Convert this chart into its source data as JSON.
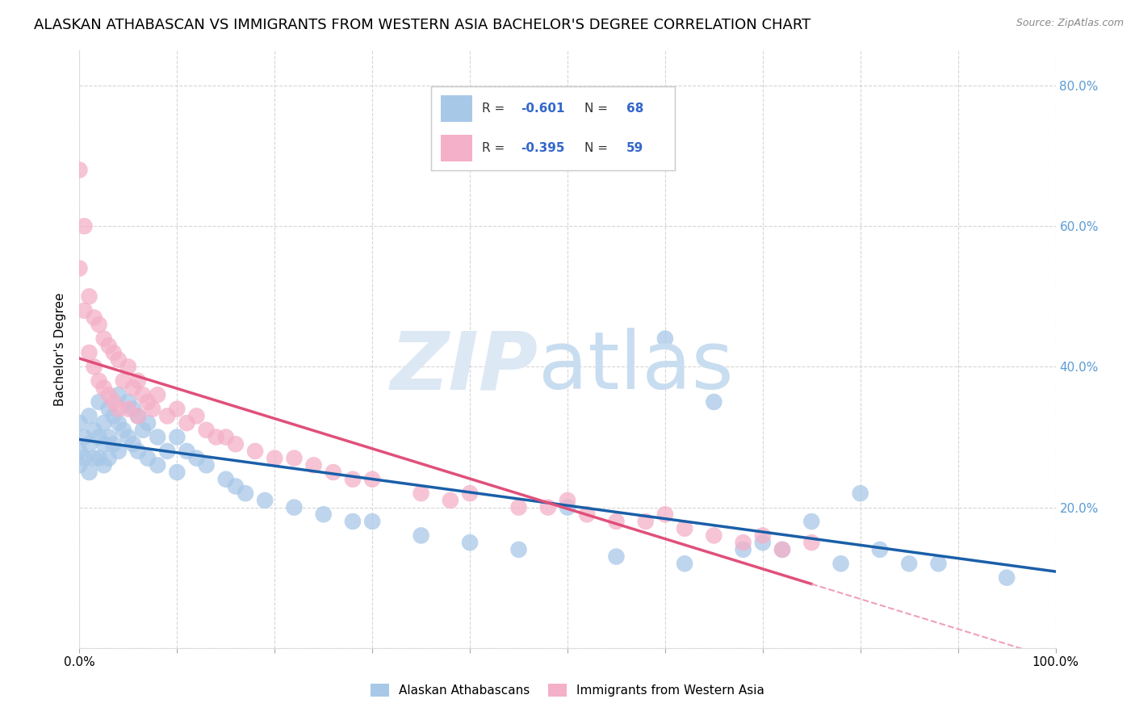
{
  "title": "ALASKAN ATHABASCAN VS IMMIGRANTS FROM WESTERN ASIA BACHELOR'S DEGREE CORRELATION CHART",
  "source": "Source: ZipAtlas.com",
  "ylabel": "Bachelor's Degree",
  "blue_R": -0.601,
  "blue_N": 68,
  "pink_R": -0.395,
  "pink_N": 59,
  "blue_color": "#a8c8e8",
  "pink_color": "#f4b0c8",
  "blue_line_color": "#1a5fa8",
  "pink_line_color": "#e0507a",
  "pink_dash_color": "#f0a0b8",
  "watermark_zip_color": "#dce8f4",
  "watermark_atlas_color": "#c8ddf0",
  "legend_label_blue": "Alaskan Athabascans",
  "legend_label_pink": "Immigrants from Western Asia",
  "blue_scatter_x": [
    0.0,
    0.0,
    0.0,
    0.005,
    0.005,
    0.01,
    0.01,
    0.01,
    0.015,
    0.015,
    0.02,
    0.02,
    0.02,
    0.025,
    0.025,
    0.025,
    0.03,
    0.03,
    0.03,
    0.035,
    0.035,
    0.04,
    0.04,
    0.04,
    0.045,
    0.05,
    0.05,
    0.055,
    0.055,
    0.06,
    0.06,
    0.065,
    0.07,
    0.07,
    0.08,
    0.08,
    0.09,
    0.1,
    0.1,
    0.11,
    0.12,
    0.13,
    0.15,
    0.16,
    0.17,
    0.19,
    0.22,
    0.25,
    0.28,
    0.3,
    0.35,
    0.4,
    0.45,
    0.5,
    0.55,
    0.6,
    0.62,
    0.65,
    0.68,
    0.7,
    0.72,
    0.75,
    0.78,
    0.8,
    0.82,
    0.85,
    0.88,
    0.95
  ],
  "blue_scatter_y": [
    0.32,
    0.28,
    0.26,
    0.3,
    0.27,
    0.33,
    0.29,
    0.25,
    0.31,
    0.27,
    0.35,
    0.3,
    0.27,
    0.32,
    0.29,
    0.26,
    0.34,
    0.3,
    0.27,
    0.33,
    0.29,
    0.36,
    0.32,
    0.28,
    0.31,
    0.35,
    0.3,
    0.34,
    0.29,
    0.33,
    0.28,
    0.31,
    0.32,
    0.27,
    0.3,
    0.26,
    0.28,
    0.3,
    0.25,
    0.28,
    0.27,
    0.26,
    0.24,
    0.23,
    0.22,
    0.21,
    0.2,
    0.19,
    0.18,
    0.18,
    0.16,
    0.15,
    0.14,
    0.2,
    0.13,
    0.44,
    0.12,
    0.35,
    0.14,
    0.15,
    0.14,
    0.18,
    0.12,
    0.22,
    0.14,
    0.12,
    0.12,
    0.1
  ],
  "pink_scatter_x": [
    0.0,
    0.0,
    0.005,
    0.005,
    0.01,
    0.01,
    0.015,
    0.015,
    0.02,
    0.02,
    0.025,
    0.025,
    0.03,
    0.03,
    0.035,
    0.035,
    0.04,
    0.04,
    0.045,
    0.05,
    0.05,
    0.055,
    0.06,
    0.06,
    0.065,
    0.07,
    0.075,
    0.08,
    0.09,
    0.1,
    0.11,
    0.12,
    0.13,
    0.14,
    0.15,
    0.16,
    0.18,
    0.2,
    0.22,
    0.24,
    0.26,
    0.28,
    0.3,
    0.35,
    0.38,
    0.4,
    0.45,
    0.48,
    0.5,
    0.52,
    0.55,
    0.58,
    0.6,
    0.62,
    0.65,
    0.68,
    0.7,
    0.72,
    0.75
  ],
  "pink_scatter_y": [
    0.68,
    0.54,
    0.6,
    0.48,
    0.5,
    0.42,
    0.47,
    0.4,
    0.46,
    0.38,
    0.44,
    0.37,
    0.43,
    0.36,
    0.42,
    0.35,
    0.41,
    0.34,
    0.38,
    0.4,
    0.34,
    0.37,
    0.38,
    0.33,
    0.36,
    0.35,
    0.34,
    0.36,
    0.33,
    0.34,
    0.32,
    0.33,
    0.31,
    0.3,
    0.3,
    0.29,
    0.28,
    0.27,
    0.27,
    0.26,
    0.25,
    0.24,
    0.24,
    0.22,
    0.21,
    0.22,
    0.2,
    0.2,
    0.21,
    0.19,
    0.18,
    0.18,
    0.19,
    0.17,
    0.16,
    0.15,
    0.16,
    0.14,
    0.15
  ],
  "background_color": "#ffffff",
  "grid_color": "#cccccc",
  "title_fontsize": 13,
  "label_fontsize": 11,
  "tick_fontsize": 11,
  "right_tick_color": "#5b9bd5",
  "legend_R_color": "#3366cc",
  "legend_N_color": "#3366cc"
}
